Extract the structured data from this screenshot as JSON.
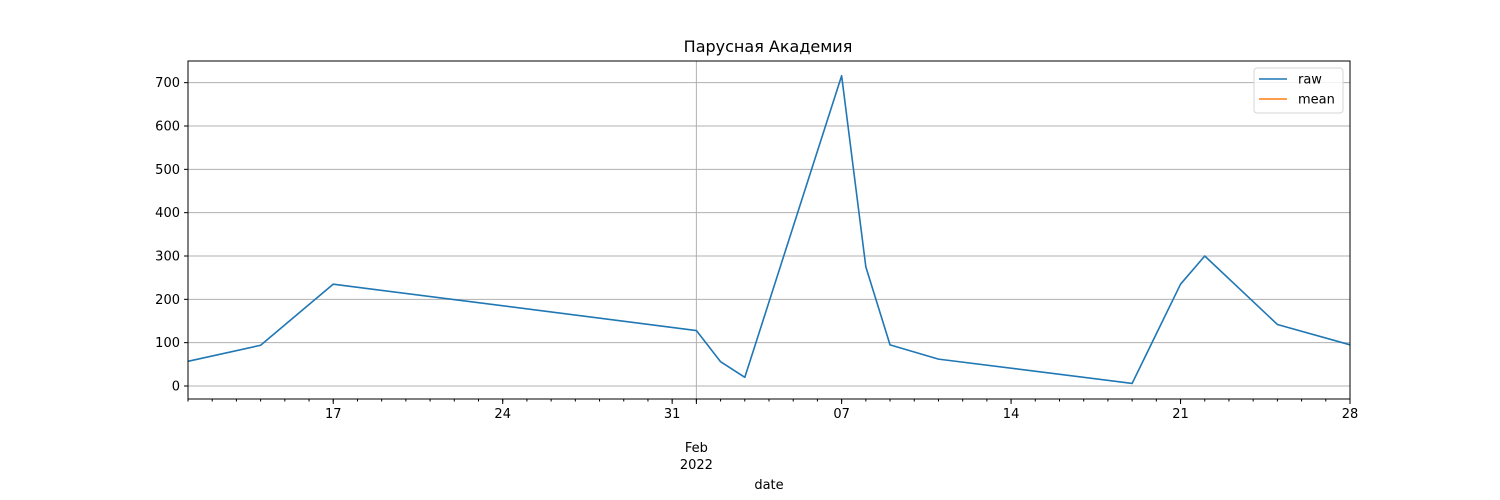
{
  "chart_data": {
    "type": "line",
    "title": "Парусная Академия",
    "xlabel": "date",
    "ylabel": "",
    "x_range": [
      "2022-01-11",
      "2022-02-28"
    ],
    "ylim": [
      -30,
      750
    ],
    "grid": true,
    "legend_position": "top-right",
    "y_ticks": [
      0,
      100,
      200,
      300,
      400,
      500,
      600,
      700
    ],
    "x_ticks_major": [
      {
        "date": "2022-01-17",
        "label": "17"
      },
      {
        "date": "2022-01-24",
        "label": "24"
      },
      {
        "date": "2022-01-31",
        "label": "31"
      },
      {
        "date": "2022-02-07",
        "label": "07"
      },
      {
        "date": "2022-02-14",
        "label": "14"
      },
      {
        "date": "2022-02-21",
        "label": "21"
      },
      {
        "date": "2022-02-28",
        "label": "28"
      }
    ],
    "month_marker": {
      "date": "2022-02-01",
      "label_month": "Feb",
      "label_year": "2022"
    },
    "series": [
      {
        "name": "raw",
        "color": "#1f77b4",
        "points": [
          {
            "x": "2022-01-11",
            "y": 57
          },
          {
            "x": "2022-01-14",
            "y": 94
          },
          {
            "x": "2022-01-17",
            "y": 235
          },
          {
            "x": "2022-02-01",
            "y": 128
          },
          {
            "x": "2022-02-02",
            "y": 56
          },
          {
            "x": "2022-02-03",
            "y": 20
          },
          {
            "x": "2022-02-07",
            "y": 716
          },
          {
            "x": "2022-02-08",
            "y": 275
          },
          {
            "x": "2022-02-09",
            "y": 95
          },
          {
            "x": "2022-02-11",
            "y": 62
          },
          {
            "x": "2022-02-19",
            "y": 6
          },
          {
            "x": "2022-02-21",
            "y": 235
          },
          {
            "x": "2022-02-22",
            "y": 300
          },
          {
            "x": "2022-02-25",
            "y": 142
          },
          {
            "x": "2022-02-28",
            "y": 95
          }
        ]
      },
      {
        "name": "mean",
        "color": "#ff7f0e",
        "points": []
      }
    ]
  }
}
